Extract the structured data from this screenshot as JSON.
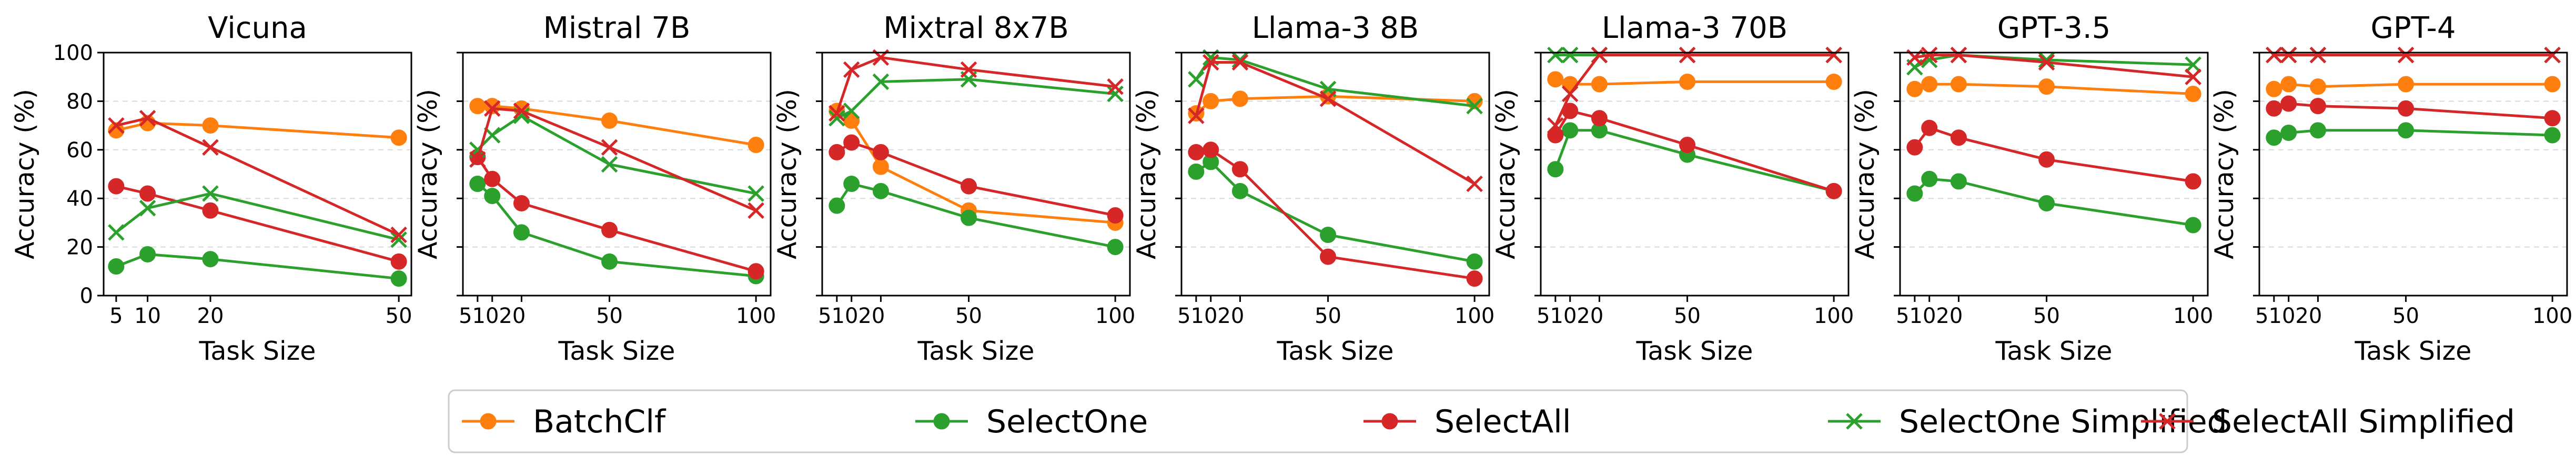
{
  "colors": {
    "BatchClf": "#ff7f0e",
    "SelectOne": "#2ca02c",
    "SelectAll": "#d62728",
    "SelectOne Simplified": "#2ca02c",
    "SelectAll Simplified": "#d62728"
  },
  "legend": {
    "location": "bottom-center",
    "entries": [
      "BatchClf",
      "SelectOne",
      "SelectAll",
      "SelectOne Simplified",
      "SelectAll Simplified"
    ]
  },
  "chart_data": [
    {
      "type": "line",
      "title": "Vicuna",
      "xlabel": "Task Size",
      "ylabel": "Accuracy (%)",
      "ylim": [
        0,
        100
      ],
      "xlim": [
        3,
        52
      ],
      "xticks": [
        5,
        10,
        20,
        50
      ],
      "yticks": [
        0,
        20,
        40,
        60,
        80,
        100
      ],
      "grid": "horizontal dashed",
      "series": [
        {
          "name": "BatchClf",
          "marker": "circle",
          "x": [
            5,
            10,
            20,
            50
          ],
          "values": [
            68,
            71,
            70,
            65
          ]
        },
        {
          "name": "SelectOne",
          "marker": "circle",
          "x": [
            5,
            10,
            20,
            50
          ],
          "values": [
            12,
            17,
            15,
            7
          ]
        },
        {
          "name": "SelectAll",
          "marker": "circle",
          "x": [
            5,
            10,
            20,
            50
          ],
          "values": [
            45,
            42,
            35,
            14
          ]
        },
        {
          "name": "SelectOne Simplified",
          "marker": "x",
          "x": [
            5,
            10,
            20,
            50
          ],
          "values": [
            26,
            36,
            42,
            23
          ]
        },
        {
          "name": "SelectAll Simplified",
          "marker": "x",
          "x": [
            5,
            10,
            20,
            50
          ],
          "values": [
            70,
            73,
            61,
            25
          ]
        }
      ]
    },
    {
      "type": "line",
      "title": "Mistral 7B",
      "xlabel": "Task Size",
      "ylabel": "Accuracy (%)",
      "ylim": [
        0,
        100
      ],
      "xlim": [
        0,
        105
      ],
      "xticks": [
        5,
        10,
        20,
        50,
        100
      ],
      "xticklabels": [
        "5",
        "10",
        "20",
        "50",
        "100"
      ],
      "yticks": [
        0,
        20,
        40,
        60,
        80,
        100
      ],
      "grid": "horizontal dashed",
      "series": [
        {
          "name": "BatchClf",
          "marker": "circle",
          "x": [
            5,
            10,
            20,
            50,
            100
          ],
          "values": [
            78,
            78,
            77,
            72,
            62
          ]
        },
        {
          "name": "SelectOne",
          "marker": "circle",
          "x": [
            5,
            10,
            20,
            50,
            100
          ],
          "values": [
            46,
            41,
            26,
            14,
            8
          ]
        },
        {
          "name": "SelectAll",
          "marker": "circle",
          "x": [
            5,
            10,
            20,
            50,
            100
          ],
          "values": [
            57,
            48,
            38,
            27,
            10
          ]
        },
        {
          "name": "SelectOne Simplified",
          "marker": "x",
          "x": [
            5,
            10,
            20,
            50,
            100
          ],
          "values": [
            60,
            66,
            74,
            54,
            42
          ]
        },
        {
          "name": "SelectAll Simplified",
          "marker": "x",
          "x": [
            5,
            10,
            20,
            50,
            100
          ],
          "values": [
            56,
            77,
            76,
            61,
            35
          ]
        }
      ]
    },
    {
      "type": "line",
      "title": "Mixtral 8x7B",
      "xlabel": "Task Size",
      "ylabel": "Accuracy (%)",
      "ylim": [
        0,
        100
      ],
      "xlim": [
        0,
        105
      ],
      "xticks": [
        5,
        10,
        20,
        50,
        100
      ],
      "xticklabels": [
        "5",
        "10",
        "20",
        "50",
        "100"
      ],
      "yticks": [
        0,
        20,
        40,
        60,
        80,
        100
      ],
      "grid": "horizontal dashed",
      "series": [
        {
          "name": "BatchClf",
          "marker": "circle",
          "x": [
            5,
            10,
            20,
            50,
            100
          ],
          "values": [
            76,
            72,
            53,
            35,
            30
          ]
        },
        {
          "name": "SelectOne",
          "marker": "circle",
          "x": [
            5,
            10,
            20,
            50,
            100
          ],
          "values": [
            37,
            46,
            43,
            32,
            20
          ]
        },
        {
          "name": "SelectAll",
          "marker": "circle",
          "x": [
            5,
            10,
            20,
            50,
            100
          ],
          "values": [
            59,
            63,
            59,
            45,
            33
          ]
        },
        {
          "name": "SelectOne Simplified",
          "marker": "x",
          "x": [
            5,
            10,
            20,
            50,
            100
          ],
          "values": [
            73,
            76,
            88,
            89,
            83
          ]
        },
        {
          "name": "SelectAll Simplified",
          "marker": "x",
          "x": [
            5,
            10,
            20,
            50,
            100
          ],
          "values": [
            75,
            93,
            98,
            93,
            86
          ]
        }
      ]
    },
    {
      "type": "line",
      "title": "Llama-3 8B",
      "xlabel": "Task Size",
      "ylabel": "Accuracy (%)",
      "ylim": [
        0,
        100
      ],
      "xlim": [
        0,
        105
      ],
      "xticks": [
        5,
        10,
        20,
        50,
        100
      ],
      "xticklabels": [
        "5",
        "10",
        "20",
        "50",
        "100"
      ],
      "yticks": [
        0,
        20,
        40,
        60,
        80,
        100
      ],
      "grid": "horizontal dashed",
      "series": [
        {
          "name": "BatchClf",
          "marker": "circle",
          "x": [
            5,
            10,
            20,
            50,
            100
          ],
          "values": [
            75,
            80,
            81,
            82,
            80
          ]
        },
        {
          "name": "SelectOne",
          "marker": "circle",
          "x": [
            5,
            10,
            20,
            50,
            100
          ],
          "values": [
            51,
            55,
            43,
            25,
            14
          ]
        },
        {
          "name": "SelectAll",
          "marker": "circle",
          "x": [
            5,
            10,
            20,
            50,
            100
          ],
          "values": [
            59,
            60,
            52,
            16,
            7
          ]
        },
        {
          "name": "SelectOne Simplified",
          "marker": "x",
          "x": [
            5,
            10,
            20,
            50,
            100
          ],
          "values": [
            89,
            98,
            97,
            85,
            78
          ]
        },
        {
          "name": "SelectAll Simplified",
          "marker": "x",
          "x": [
            5,
            10,
            20,
            50,
            100
          ],
          "values": [
            74,
            96,
            96,
            81,
            46
          ]
        }
      ]
    },
    {
      "type": "line",
      "title": "Llama-3 70B",
      "xlabel": "Task Size",
      "ylabel": "Accuracy (%)",
      "ylim": [
        0,
        100
      ],
      "xlim": [
        0,
        105
      ],
      "xticks": [
        5,
        10,
        20,
        50,
        100
      ],
      "xticklabels": [
        "5",
        "10",
        "20",
        "50",
        "100"
      ],
      "yticks": [
        0,
        20,
        40,
        60,
        80,
        100
      ],
      "grid": "horizontal dashed",
      "series": [
        {
          "name": "BatchClf",
          "marker": "circle",
          "x": [
            5,
            10,
            20,
            50,
            100
          ],
          "values": [
            89,
            87,
            87,
            88,
            88
          ]
        },
        {
          "name": "SelectOne",
          "marker": "circle",
          "x": [
            5,
            10,
            20,
            50,
            100
          ],
          "values": [
            52,
            68,
            68,
            58,
            43
          ]
        },
        {
          "name": "SelectAll",
          "marker": "circle",
          "x": [
            5,
            10,
            20,
            50,
            100
          ],
          "values": [
            66,
            76,
            73,
            62,
            43
          ]
        },
        {
          "name": "SelectOne Simplified",
          "marker": "x",
          "x": [
            5,
            10,
            20,
            50,
            100
          ],
          "values": [
            99,
            99,
            99,
            99,
            99
          ]
        },
        {
          "name": "SelectAll Simplified",
          "marker": "x",
          "x": [
            5,
            10,
            20,
            50,
            100
          ],
          "values": [
            70,
            83,
            99,
            99,
            99
          ]
        }
      ]
    },
    {
      "type": "line",
      "title": "GPT-3.5",
      "xlabel": "Task Size",
      "ylabel": "Accuracy (%)",
      "ylim": [
        0,
        100
      ],
      "xlim": [
        0,
        105
      ],
      "xticks": [
        5,
        10,
        20,
        50,
        100
      ],
      "xticklabels": [
        "5",
        "10",
        "20",
        "50",
        "100"
      ],
      "yticks": [
        0,
        20,
        40,
        60,
        80,
        100
      ],
      "grid": "horizontal dashed",
      "series": [
        {
          "name": "BatchClf",
          "marker": "circle",
          "x": [
            5,
            10,
            20,
            50,
            100
          ],
          "values": [
            85,
            87,
            87,
            86,
            83
          ]
        },
        {
          "name": "SelectOne",
          "marker": "circle",
          "x": [
            5,
            10,
            20,
            50,
            100
          ],
          "values": [
            42,
            48,
            47,
            38,
            29
          ]
        },
        {
          "name": "SelectAll",
          "marker": "circle",
          "x": [
            5,
            10,
            20,
            50,
            100
          ],
          "values": [
            61,
            69,
            65,
            56,
            47
          ]
        },
        {
          "name": "SelectOne Simplified",
          "marker": "x",
          "x": [
            5,
            10,
            20,
            50,
            100
          ],
          "values": [
            94,
            97,
            99,
            97,
            95
          ]
        },
        {
          "name": "SelectAll Simplified",
          "marker": "x",
          "x": [
            5,
            10,
            20,
            50,
            100
          ],
          "values": [
            98,
            99,
            99,
            96,
            90
          ]
        }
      ]
    },
    {
      "type": "line",
      "title": "GPT-4",
      "xlabel": "Task Size",
      "ylabel": "Accuracy (%)",
      "ylim": [
        0,
        100
      ],
      "xlim": [
        0,
        105
      ],
      "xticks": [
        5,
        10,
        20,
        50,
        100
      ],
      "xticklabels": [
        "5",
        "10",
        "20",
        "50",
        "100"
      ],
      "yticks": [
        0,
        20,
        40,
        60,
        80,
        100
      ],
      "grid": "horizontal dashed",
      "series": [
        {
          "name": "BatchClf",
          "marker": "circle",
          "x": [
            5,
            10,
            20,
            50,
            100
          ],
          "values": [
            85,
            87,
            86,
            87,
            87
          ]
        },
        {
          "name": "SelectOne",
          "marker": "circle",
          "x": [
            5,
            10,
            20,
            50,
            100
          ],
          "values": [
            65,
            67,
            68,
            68,
            66
          ]
        },
        {
          "name": "SelectAll",
          "marker": "circle",
          "x": [
            5,
            10,
            20,
            50,
            100
          ],
          "values": [
            77,
            79,
            78,
            77,
            73
          ]
        },
        {
          "name": "SelectOne Simplified",
          "marker": "x",
          "x": [
            5,
            10,
            20,
            50,
            100
          ],
          "values": [
            99,
            99,
            99,
            99,
            99
          ]
        },
        {
          "name": "SelectAll Simplified",
          "marker": "x",
          "x": [
            5,
            10,
            20,
            50,
            100
          ],
          "values": [
            99,
            99,
            99,
            99,
            99
          ]
        }
      ]
    }
  ]
}
